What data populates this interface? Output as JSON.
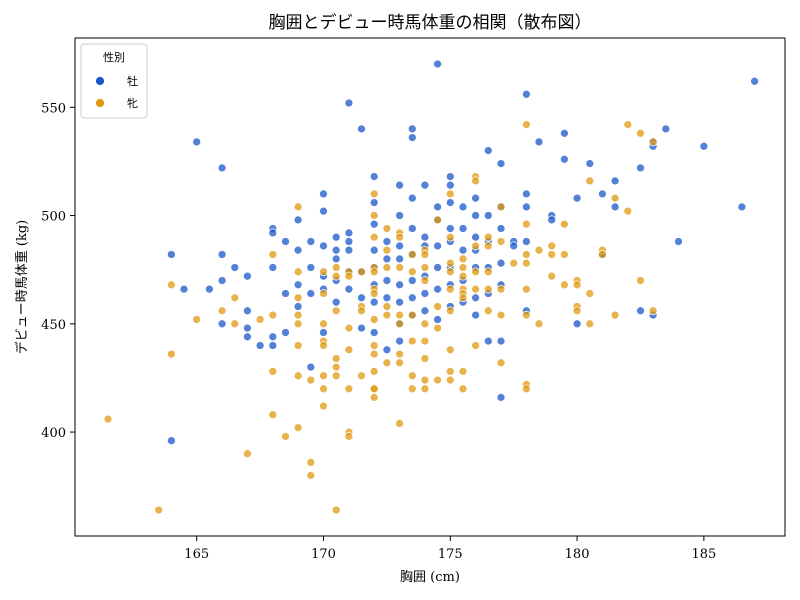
{
  "chart_data": {
    "type": "scatter",
    "title": "胸囲とデビュー時馬体重の相関（散布図）",
    "xlabel": "胸囲 (cm)",
    "ylabel": "デビュー時馬体重 (kg)",
    "xlim": [
      160.2,
      188.2
    ],
    "ylim": [
      352,
      582
    ],
    "xticks": [
      165,
      170,
      175,
      180,
      185
    ],
    "yticks": [
      400,
      450,
      500,
      550
    ],
    "grid": false,
    "legend": {
      "title": "性別",
      "placement": "top-left"
    },
    "series": [
      {
        "name": "牡",
        "color": "#1a57c9",
        "points": [
          [
            164.0,
            482
          ],
          [
            164.0,
            396
          ],
          [
            164.5,
            466
          ],
          [
            165.0,
            534
          ],
          [
            165.5,
            466
          ],
          [
            166.0,
            522
          ],
          [
            166.0,
            482
          ],
          [
            166.0,
            470
          ],
          [
            166.0,
            450
          ],
          [
            166.5,
            476
          ],
          [
            167.0,
            472
          ],
          [
            167.0,
            456
          ],
          [
            167.0,
            448
          ],
          [
            167.0,
            444
          ],
          [
            167.5,
            440
          ],
          [
            168.0,
            494
          ],
          [
            168.0,
            492
          ],
          [
            168.0,
            476
          ],
          [
            168.0,
            444
          ],
          [
            168.0,
            440
          ],
          [
            168.5,
            488
          ],
          [
            168.5,
            464
          ],
          [
            168.5,
            446
          ],
          [
            169.0,
            498
          ],
          [
            169.0,
            484
          ],
          [
            169.0,
            468
          ],
          [
            169.0,
            458
          ],
          [
            169.5,
            488
          ],
          [
            169.5,
            476
          ],
          [
            169.5,
            464
          ],
          [
            169.5,
            430
          ],
          [
            170.0,
            510
          ],
          [
            170.0,
            502
          ],
          [
            170.0,
            486
          ],
          [
            170.0,
            472
          ],
          [
            170.0,
            466
          ],
          [
            170.0,
            446
          ],
          [
            170.5,
            490
          ],
          [
            170.5,
            484
          ],
          [
            170.5,
            480
          ],
          [
            170.5,
            470
          ],
          [
            170.5,
            460
          ],
          [
            171.0,
            552
          ],
          [
            171.0,
            492
          ],
          [
            171.0,
            488
          ],
          [
            171.0,
            484
          ],
          [
            171.0,
            474
          ],
          [
            171.0,
            466
          ],
          [
            171.5,
            540
          ],
          [
            171.5,
            474
          ],
          [
            171.5,
            462
          ],
          [
            171.5,
            448
          ],
          [
            172.0,
            518
          ],
          [
            172.0,
            506
          ],
          [
            172.0,
            496
          ],
          [
            172.0,
            484
          ],
          [
            172.0,
            476
          ],
          [
            172.0,
            468
          ],
          [
            172.0,
            460
          ],
          [
            172.0,
            446
          ],
          [
            172.5,
            488
          ],
          [
            172.5,
            480
          ],
          [
            172.5,
            470
          ],
          [
            172.5,
            462
          ],
          [
            172.5,
            438
          ],
          [
            173.0,
            514
          ],
          [
            173.0,
            500
          ],
          [
            173.0,
            486
          ],
          [
            173.0,
            480
          ],
          [
            173.0,
            468
          ],
          [
            173.0,
            460
          ],
          [
            173.0,
            450
          ],
          [
            173.0,
            442
          ],
          [
            173.5,
            540
          ],
          [
            173.5,
            536
          ],
          [
            173.5,
            508
          ],
          [
            173.5,
            494
          ],
          [
            173.5,
            482
          ],
          [
            173.5,
            470
          ],
          [
            173.5,
            462
          ],
          [
            173.5,
            454
          ],
          [
            174.0,
            514
          ],
          [
            174.0,
            490
          ],
          [
            174.0,
            486
          ],
          [
            174.0,
            472
          ],
          [
            174.0,
            464
          ],
          [
            174.0,
            456
          ],
          [
            174.5,
            570
          ],
          [
            174.5,
            504
          ],
          [
            174.5,
            498
          ],
          [
            174.5,
            486
          ],
          [
            174.5,
            476
          ],
          [
            174.5,
            466
          ],
          [
            174.5,
            452
          ],
          [
            175.0,
            518
          ],
          [
            175.0,
            514
          ],
          [
            175.0,
            506
          ],
          [
            175.0,
            494
          ],
          [
            175.0,
            488
          ],
          [
            175.0,
            476
          ],
          [
            175.0,
            468
          ],
          [
            175.0,
            458
          ],
          [
            175.5,
            504
          ],
          [
            175.5,
            494
          ],
          [
            175.5,
            484
          ],
          [
            175.5,
            470
          ],
          [
            175.5,
            460
          ],
          [
            176.0,
            508
          ],
          [
            176.0,
            500
          ],
          [
            176.0,
            490
          ],
          [
            176.0,
            484
          ],
          [
            176.0,
            476
          ],
          [
            176.0,
            462
          ],
          [
            176.0,
            454
          ],
          [
            176.5,
            530
          ],
          [
            176.5,
            500
          ],
          [
            176.5,
            488
          ],
          [
            176.5,
            476
          ],
          [
            176.5,
            464
          ],
          [
            176.5,
            442
          ],
          [
            177.0,
            524
          ],
          [
            177.0,
            504
          ],
          [
            177.0,
            494
          ],
          [
            177.0,
            478
          ],
          [
            177.0,
            468
          ],
          [
            177.0,
            442
          ],
          [
            177.0,
            416
          ],
          [
            177.5,
            488
          ],
          [
            177.5,
            486
          ],
          [
            178.0,
            556
          ],
          [
            178.0,
            510
          ],
          [
            178.0,
            504
          ],
          [
            178.0,
            488
          ],
          [
            178.0,
            456
          ],
          [
            178.5,
            534
          ],
          [
            179.0,
            500
          ],
          [
            179.0,
            498
          ],
          [
            179.5,
            538
          ],
          [
            179.5,
            526
          ],
          [
            180.0,
            508
          ],
          [
            180.0,
            450
          ],
          [
            180.5,
            524
          ],
          [
            181.0,
            510
          ],
          [
            181.0,
            482
          ],
          [
            181.5,
            516
          ],
          [
            181.5,
            504
          ],
          [
            182.5,
            522
          ],
          [
            182.5,
            456
          ],
          [
            183.0,
            534
          ],
          [
            183.0,
            532
          ],
          [
            183.0,
            454
          ],
          [
            183.5,
            540
          ],
          [
            184.0,
            488
          ],
          [
            185.0,
            532
          ],
          [
            186.5,
            504
          ],
          [
            187.0,
            562
          ]
        ]
      },
      {
        "name": "牝",
        "color": "#e09a10",
        "points": [
          [
            161.5,
            406
          ],
          [
            163.5,
            364
          ],
          [
            164.0,
            468
          ],
          [
            164.0,
            436
          ],
          [
            165.0,
            452
          ],
          [
            166.0,
            456
          ],
          [
            166.5,
            462
          ],
          [
            166.5,
            450
          ],
          [
            167.0,
            390
          ],
          [
            167.5,
            452
          ],
          [
            168.0,
            482
          ],
          [
            168.0,
            454
          ],
          [
            168.0,
            428
          ],
          [
            168.0,
            408
          ],
          [
            168.5,
            398
          ],
          [
            169.0,
            504
          ],
          [
            169.0,
            474
          ],
          [
            169.0,
            462
          ],
          [
            169.0,
            454
          ],
          [
            169.0,
            450
          ],
          [
            169.0,
            440
          ],
          [
            169.0,
            426
          ],
          [
            169.0,
            402
          ],
          [
            169.5,
            424
          ],
          [
            169.5,
            386
          ],
          [
            169.5,
            380
          ],
          [
            170.0,
            474
          ],
          [
            170.0,
            464
          ],
          [
            170.0,
            450
          ],
          [
            170.0,
            442
          ],
          [
            170.0,
            440
          ],
          [
            170.0,
            426
          ],
          [
            170.0,
            420
          ],
          [
            170.0,
            412
          ],
          [
            170.5,
            476
          ],
          [
            170.5,
            472
          ],
          [
            170.5,
            456
          ],
          [
            170.5,
            434
          ],
          [
            170.5,
            430
          ],
          [
            170.5,
            426
          ],
          [
            170.5,
            364
          ],
          [
            171.0,
            474
          ],
          [
            171.0,
            472
          ],
          [
            171.0,
            448
          ],
          [
            171.0,
            438
          ],
          [
            171.0,
            420
          ],
          [
            171.0,
            400
          ],
          [
            171.0,
            398
          ],
          [
            171.5,
            474
          ],
          [
            171.5,
            458
          ],
          [
            171.5,
            456
          ],
          [
            171.5,
            426
          ],
          [
            172.0,
            510
          ],
          [
            172.0,
            500
          ],
          [
            172.0,
            490
          ],
          [
            172.0,
            476
          ],
          [
            172.0,
            474
          ],
          [
            172.0,
            466
          ],
          [
            172.0,
            464
          ],
          [
            172.0,
            452
          ],
          [
            172.0,
            440
          ],
          [
            172.0,
            436
          ],
          [
            172.0,
            428
          ],
          [
            172.0,
            420
          ],
          [
            172.0,
            420
          ],
          [
            172.0,
            416
          ],
          [
            172.5,
            494
          ],
          [
            172.5,
            484
          ],
          [
            172.5,
            476
          ],
          [
            172.5,
            458
          ],
          [
            172.5,
            454
          ],
          [
            172.5,
            432
          ],
          [
            173.0,
            492
          ],
          [
            173.0,
            490
          ],
          [
            173.0,
            476
          ],
          [
            173.0,
            454
          ],
          [
            173.0,
            450
          ],
          [
            173.0,
            436
          ],
          [
            173.0,
            432
          ],
          [
            173.0,
            404
          ],
          [
            173.5,
            482
          ],
          [
            173.5,
            474
          ],
          [
            173.5,
            454
          ],
          [
            173.5,
            442
          ],
          [
            173.5,
            426
          ],
          [
            173.5,
            420
          ],
          [
            174.0,
            484
          ],
          [
            174.0,
            482
          ],
          [
            174.0,
            476
          ],
          [
            174.0,
            470
          ],
          [
            174.0,
            450
          ],
          [
            174.0,
            442
          ],
          [
            174.0,
            434
          ],
          [
            174.0,
            424
          ],
          [
            174.0,
            420
          ],
          [
            174.5,
            498
          ],
          [
            174.5,
            458
          ],
          [
            174.5,
            448
          ],
          [
            174.5,
            424
          ],
          [
            175.0,
            510
          ],
          [
            175.0,
            490
          ],
          [
            175.0,
            478
          ],
          [
            175.0,
            474
          ],
          [
            175.0,
            466
          ],
          [
            175.0,
            456
          ],
          [
            175.0,
            438
          ],
          [
            175.0,
            428
          ],
          [
            175.0,
            424
          ],
          [
            175.5,
            480
          ],
          [
            175.5,
            476
          ],
          [
            175.5,
            472
          ],
          [
            175.5,
            466
          ],
          [
            175.5,
            464
          ],
          [
            175.5,
            462
          ],
          [
            175.5,
            428
          ],
          [
            175.5,
            420
          ],
          [
            176.0,
            518
          ],
          [
            176.0,
            516
          ],
          [
            176.0,
            486
          ],
          [
            176.0,
            474
          ],
          [
            176.0,
            466
          ],
          [
            176.0,
            440
          ],
          [
            176.5,
            490
          ],
          [
            176.5,
            486
          ],
          [
            176.5,
            474
          ],
          [
            176.5,
            466
          ],
          [
            176.5,
            456
          ],
          [
            177.0,
            504
          ],
          [
            177.0,
            488
          ],
          [
            177.0,
            466
          ],
          [
            177.0,
            454
          ],
          [
            177.0,
            432
          ],
          [
            177.5,
            478
          ],
          [
            178.0,
            542
          ],
          [
            178.0,
            496
          ],
          [
            178.0,
            482
          ],
          [
            178.0,
            478
          ],
          [
            178.0,
            466
          ],
          [
            178.0,
            454
          ],
          [
            178.0,
            422
          ],
          [
            178.0,
            420
          ],
          [
            178.5,
            484
          ],
          [
            178.5,
            450
          ],
          [
            179.0,
            486
          ],
          [
            179.0,
            482
          ],
          [
            179.0,
            472
          ],
          [
            179.5,
            496
          ],
          [
            179.5,
            482
          ],
          [
            179.5,
            468
          ],
          [
            180.0,
            470
          ],
          [
            180.0,
            468
          ],
          [
            180.0,
            458
          ],
          [
            180.0,
            456
          ],
          [
            180.5,
            516
          ],
          [
            180.5,
            464
          ],
          [
            180.5,
            450
          ],
          [
            181.0,
            484
          ],
          [
            181.0,
            482
          ],
          [
            181.5,
            508
          ],
          [
            181.5,
            454
          ],
          [
            182.0,
            542
          ],
          [
            182.0,
            502
          ],
          [
            182.5,
            538
          ],
          [
            182.5,
            470
          ],
          [
            183.0,
            534
          ],
          [
            183.0,
            456
          ]
        ]
      }
    ]
  }
}
